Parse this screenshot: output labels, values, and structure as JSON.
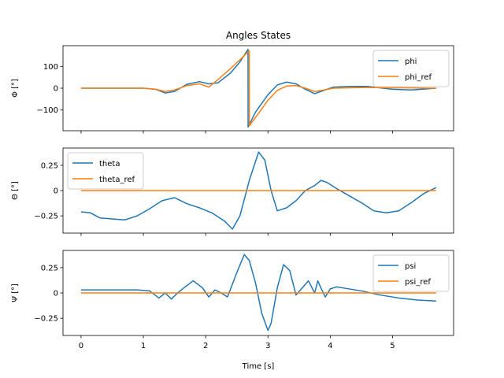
{
  "chart_data": {
    "type": "line",
    "title": "Angles States",
    "xlabel": "Time [s]",
    "shared_x_ticks": [
      0,
      1,
      2,
      3,
      4,
      5
    ],
    "colors": {
      "measured": "#1f77b4",
      "reference": "#ff7f0e"
    },
    "grid": false,
    "subplots": [
      {
        "ylabel": "Φ [°]",
        "ylim": [
          -195,
          195
        ],
        "yticks": [
          -100,
          0,
          100
        ],
        "xlim": [
          -0.29,
          5.98
        ],
        "legend_position": "upper right",
        "series": [
          {
            "name": "phi",
            "x": [
              0,
              1.0,
              1.2,
              1.35,
              1.5,
              1.7,
              1.9,
              2.05,
              2.2,
              2.4,
              2.55,
              2.68,
              2.681,
              2.8,
              3.0,
              3.15,
              3.3,
              3.45,
              3.6,
              3.75,
              3.9,
              4.05,
              4.3,
              4.6,
              5.0,
              5.3,
              5.7
            ],
            "y": [
              0,
              0,
              -5,
              -22,
              -15,
              18,
              30,
              20,
              25,
              70,
              120,
              178,
              -178,
              -110,
              -30,
              15,
              28,
              20,
              -5,
              -25,
              -10,
              5,
              8,
              8,
              -5,
              -8,
              0
            ]
          },
          {
            "name": "phi_ref",
            "x": [
              0,
              1.0,
              1.2,
              1.35,
              1.5,
              1.7,
              1.9,
              2.05,
              2.2,
              2.4,
              2.55,
              2.7,
              2.701,
              2.85,
              3.0,
              3.15,
              3.3,
              3.45,
              3.6,
              3.75,
              3.9,
              4.05,
              4.3,
              4.6,
              5.0,
              5.7
            ],
            "y": [
              0,
              0,
              -5,
              -15,
              -8,
              12,
              20,
              5,
              40,
              90,
              130,
              172,
              -172,
              -115,
              -55,
              -10,
              10,
              12,
              0,
              -15,
              -8,
              0,
              2,
              3,
              2,
              0
            ]
          }
        ]
      },
      {
        "ylabel": "Θ [°]",
        "ylim": [
          -0.42,
          0.42
        ],
        "yticks": [
          -0.25,
          0.0,
          0.25
        ],
        "xlim": [
          -0.29,
          5.98
        ],
        "legend_position": "upper left",
        "series": [
          {
            "name": "theta",
            "x": [
              0,
              0.15,
              0.3,
              0.5,
              0.7,
              0.9,
              1.1,
              1.3,
              1.5,
              1.7,
              1.9,
              2.1,
              2.3,
              2.43,
              2.55,
              2.7,
              2.85,
              2.95,
              3.05,
              3.15,
              3.3,
              3.45,
              3.6,
              3.75,
              3.85,
              3.95,
              4.1,
              4.3,
              4.5,
              4.7,
              4.9,
              5.1,
              5.3,
              5.5,
              5.7
            ],
            "y": [
              -0.21,
              -0.22,
              -0.27,
              -0.28,
              -0.29,
              -0.25,
              -0.18,
              -0.1,
              -0.07,
              -0.13,
              -0.17,
              -0.22,
              -0.3,
              -0.38,
              -0.25,
              0.1,
              0.38,
              0.3,
              0.0,
              -0.2,
              -0.17,
              -0.1,
              0.0,
              0.05,
              0.1,
              0.08,
              0.02,
              -0.05,
              -0.12,
              -0.2,
              -0.22,
              -0.2,
              -0.12,
              -0.03,
              0.03
            ]
          },
          {
            "name": "theta_ref",
            "x": [
              0,
              5.7
            ],
            "y": [
              0,
              0
            ]
          }
        ]
      },
      {
        "ylabel": "Ψ [°]",
        "ylim": [
          -0.42,
          0.42
        ],
        "yticks": [
          -0.25,
          0.0,
          0.25
        ],
        "xlim": [
          -0.29,
          5.98
        ],
        "legend_position": "upper right",
        "series": [
          {
            "name": "psi",
            "x": [
              0,
              0.3,
              0.6,
              0.9,
              1.1,
              1.25,
              1.35,
              1.45,
              1.55,
              1.65,
              1.8,
              1.95,
              2.05,
              2.15,
              2.25,
              2.35,
              2.5,
              2.62,
              2.7,
              2.8,
              2.9,
              3.0,
              3.05,
              3.15,
              3.25,
              3.35,
              3.45,
              3.55,
              3.65,
              3.75,
              3.8,
              3.85,
              3.92,
              4.0,
              4.1,
              4.2,
              4.5,
              4.8,
              5.1,
              5.4,
              5.7
            ],
            "y": [
              0.03,
              0.03,
              0.03,
              0.03,
              0.02,
              -0.05,
              0.0,
              -0.06,
              0.0,
              0.05,
              0.12,
              0.05,
              -0.04,
              0.03,
              0.0,
              -0.04,
              0.2,
              0.38,
              0.32,
              0.1,
              -0.2,
              -0.37,
              -0.3,
              0.05,
              0.28,
              0.22,
              -0.02,
              0.05,
              0.12,
              0.0,
              0.12,
              0.05,
              -0.04,
              0.04,
              0.06,
              0.05,
              0.02,
              -0.02,
              -0.05,
              -0.07,
              -0.08
            ]
          },
          {
            "name": "psi_ref",
            "x": [
              0,
              5.7
            ],
            "y": [
              0,
              0
            ]
          }
        ]
      }
    ]
  }
}
